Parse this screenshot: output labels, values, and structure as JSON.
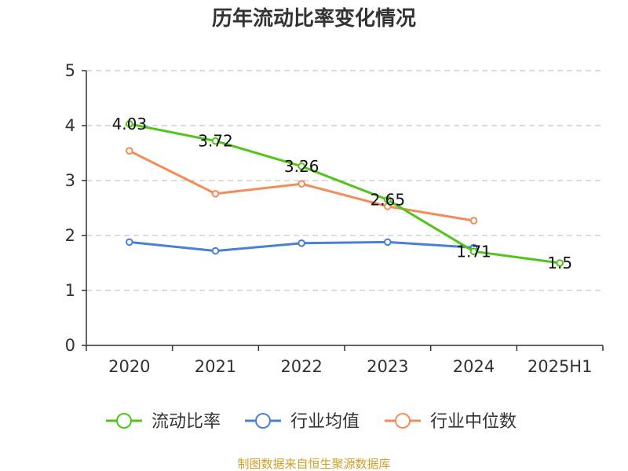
{
  "chart_data": {
    "type": "line",
    "title": "历年流动比率变化情况",
    "categories": [
      "2020",
      "2021",
      "2022",
      "2023",
      "2024",
      "2025H1"
    ],
    "ylim": [
      0,
      5
    ],
    "yticks": [
      "0",
      "1",
      "2",
      "3",
      "4",
      "5"
    ],
    "grid": true,
    "legend_position": "bottom",
    "series": [
      {
        "name": "流动比率",
        "color": "#52c41a",
        "values": [
          4.03,
          3.72,
          3.26,
          2.65,
          1.71,
          1.5
        ],
        "labels": [
          "4.03",
          "3.72",
          "3.26",
          "2.65",
          "1.71",
          "1.5"
        ]
      },
      {
        "name": "行业均值",
        "color": "#4a7fd6",
        "values": [
          1.88,
          1.72,
          1.86,
          1.88,
          1.78,
          null
        ]
      },
      {
        "name": "行业中位数",
        "color": "#f28c5a",
        "values": [
          3.54,
          2.76,
          2.94,
          2.53,
          2.27,
          null
        ]
      }
    ]
  },
  "footer": {
    "source": "制图数据来自恒生聚源数据库"
  }
}
